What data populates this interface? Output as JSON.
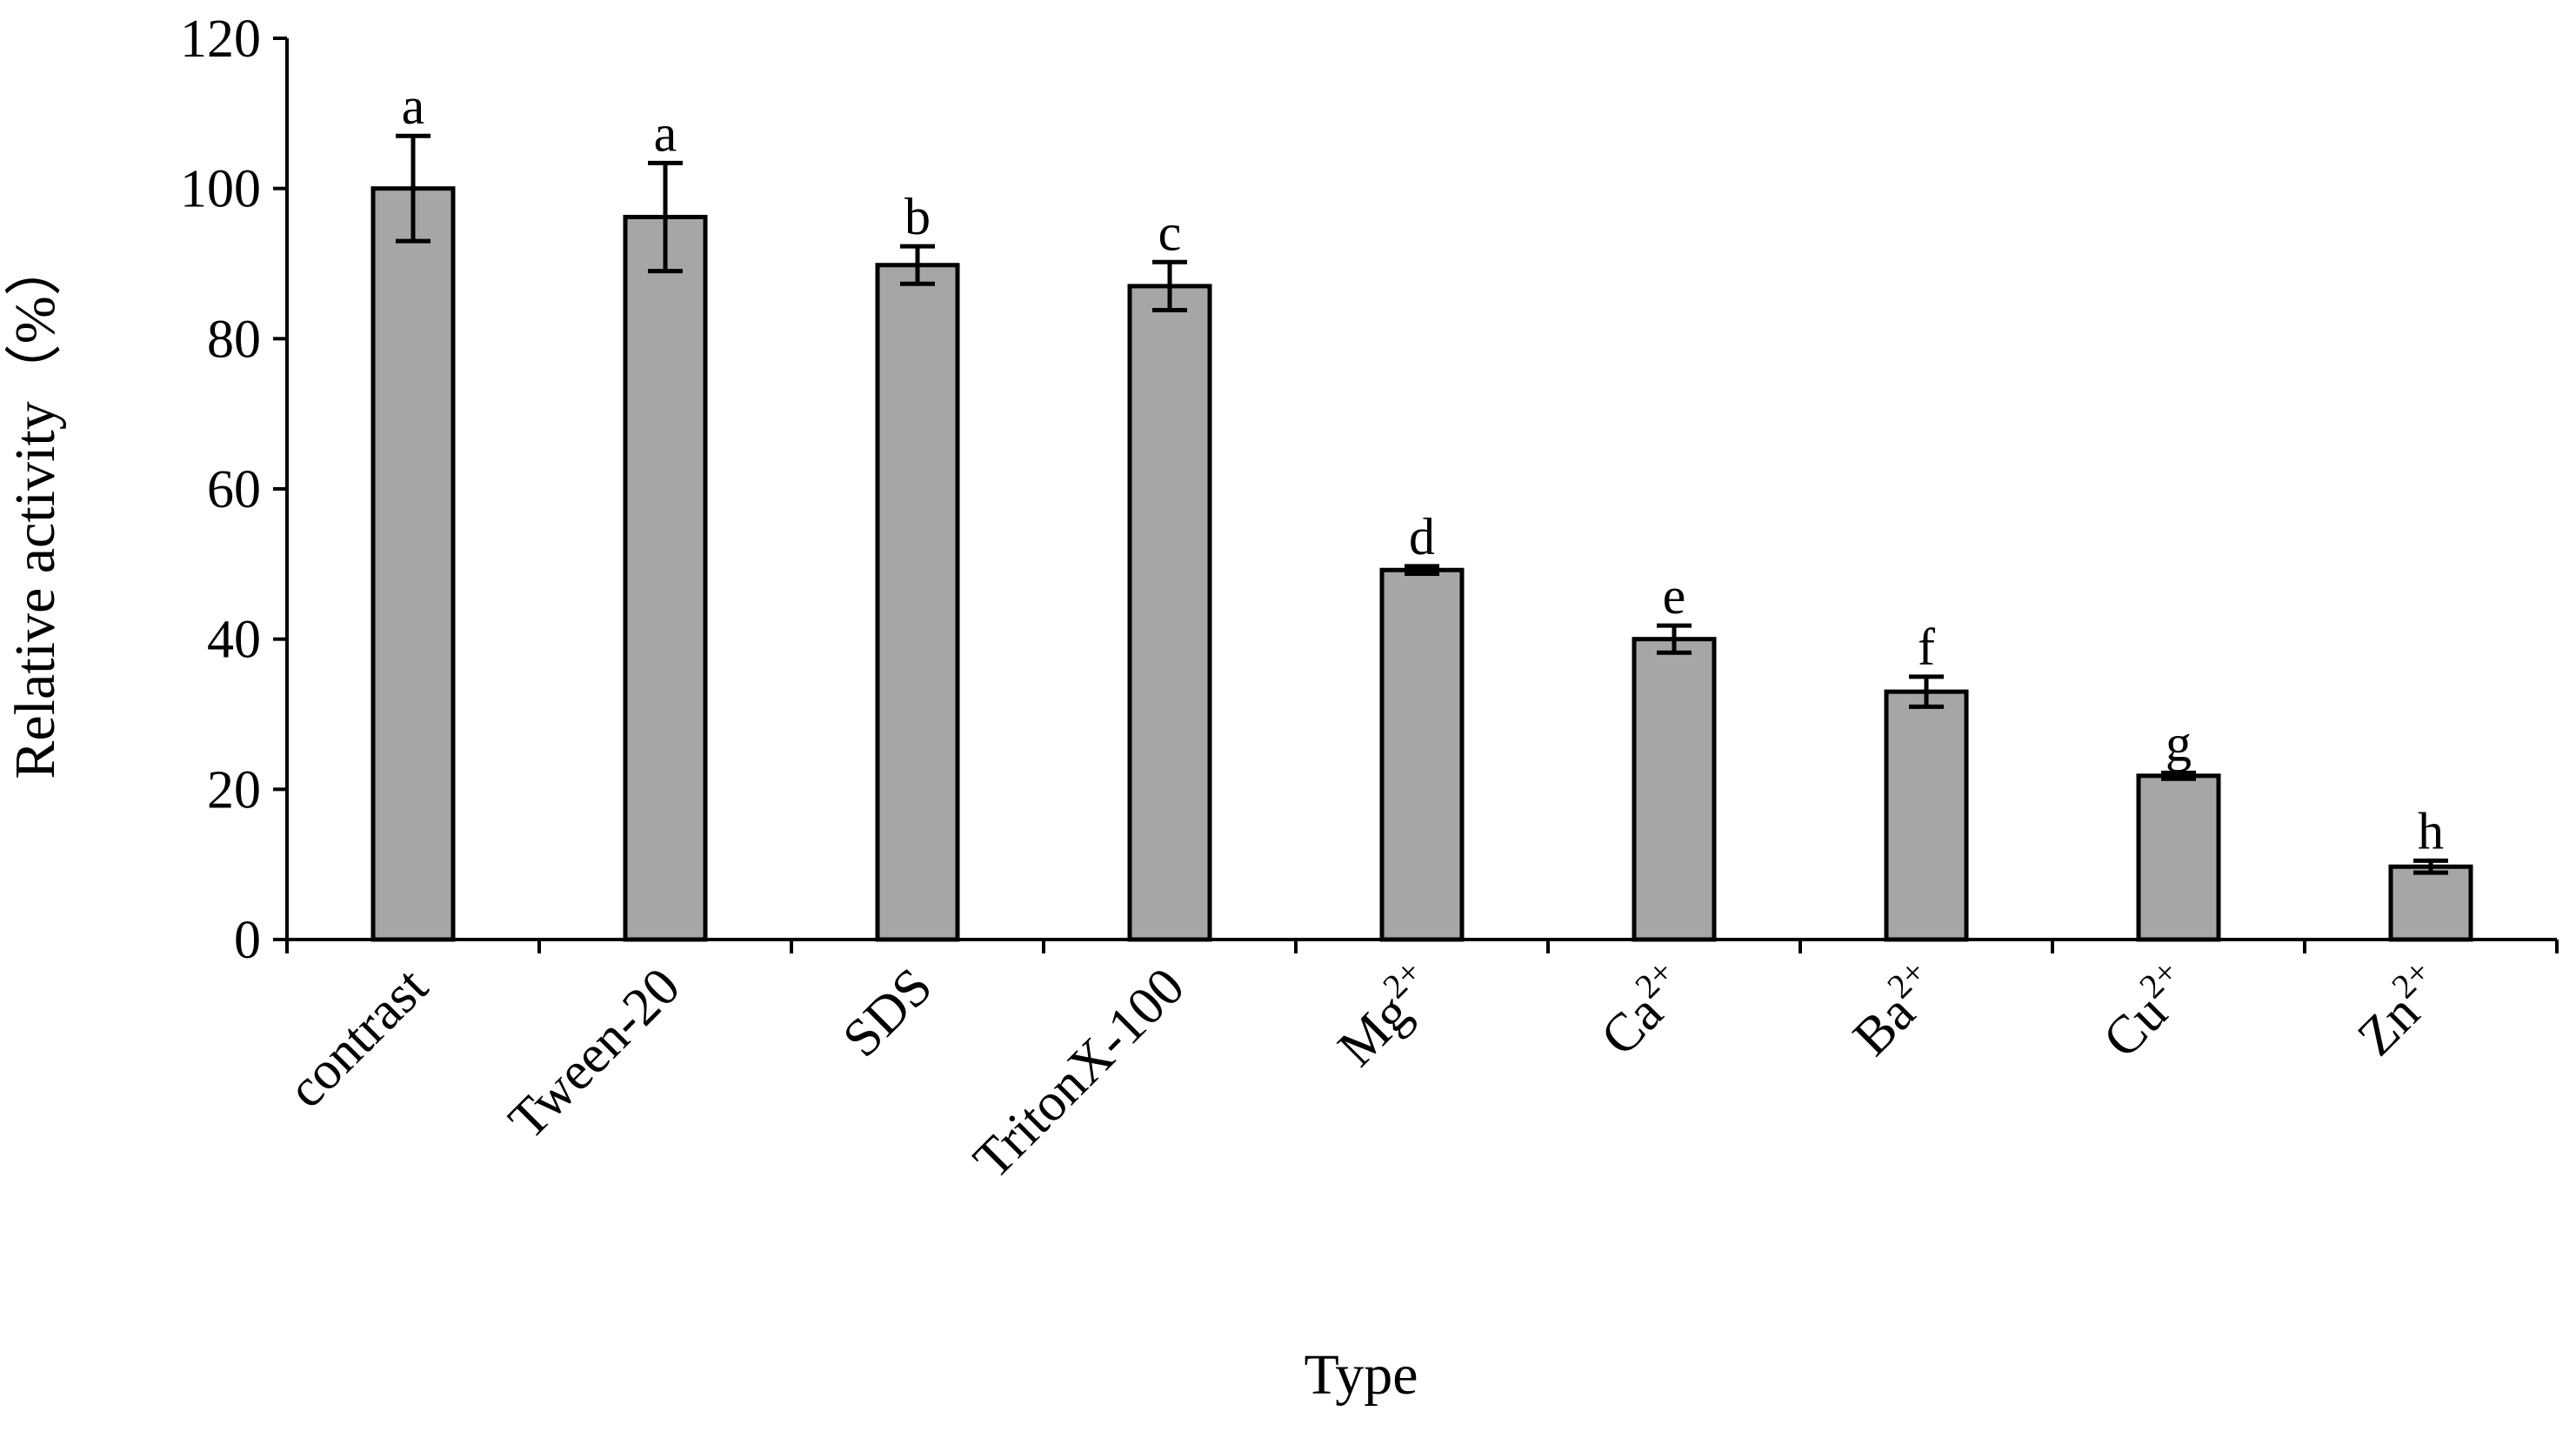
{
  "chart_data": {
    "type": "bar",
    "xlabel": "Type",
    "ylabel": "Relative activity（%）",
    "ylim": [
      0,
      120
    ],
    "yticks": [
      0,
      20,
      40,
      60,
      80,
      100,
      120
    ],
    "ytick_labels": [
      "0",
      "20",
      "40",
      "60",
      "80",
      "100",
      "120"
    ],
    "categories": [
      {
        "base": "contrast",
        "sup": ""
      },
      {
        "base": "Tween-20",
        "sup": ""
      },
      {
        "base": "SDS",
        "sup": ""
      },
      {
        "base": "TritonX-100",
        "sup": ""
      },
      {
        "base": "Mg",
        "sup": "2+"
      },
      {
        "base": "Ca",
        "sup": "2+"
      },
      {
        "base": "Ba",
        "sup": "2+"
      },
      {
        "base": "Cu",
        "sup": "2+"
      },
      {
        "base": "Zn",
        "sup": "2+"
      }
    ],
    "values": [
      100,
      96.2,
      89.8,
      87.0,
      49.2,
      40.0,
      33.0,
      21.8,
      9.7
    ],
    "errors": [
      7.0,
      7.2,
      2.5,
      3.2,
      0.5,
      1.8,
      2.0,
      0.4,
      0.8
    ],
    "significance_letters": [
      "a",
      "a",
      "b",
      "c",
      "d",
      "e",
      "f",
      "g",
      "h"
    ],
    "bar_color": "#a6a6a6",
    "grid": false,
    "legend": "none"
  }
}
